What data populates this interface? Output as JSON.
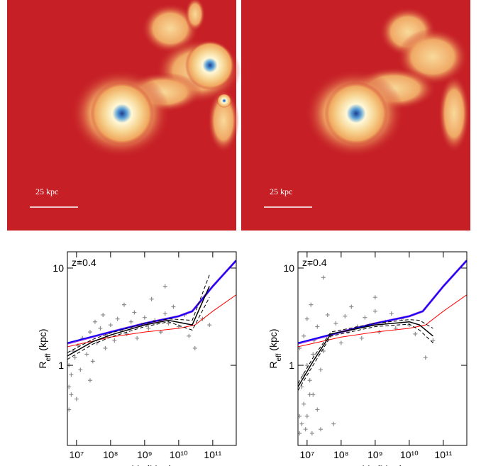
{
  "images": [
    {
      "scale_label": "25 kpc"
    },
    {
      "scale_label": "25 kpc"
    }
  ],
  "chart_data": [
    {
      "type": "scatter",
      "xlog": true,
      "ylog": true,
      "annotation": "z=0.4",
      "xlabel": [
        "M",
        "s",
        " (M",
        "sun",
        ")"
      ],
      "ylabel": [
        "R",
        "eff",
        " (kpc)"
      ],
      "xlim": [
        5400000.0,
        490000000000.0
      ],
      "ylim": [
        0.15,
        14.7
      ],
      "xticks": [
        {
          "value": 10000000.0,
          "label": "10⁷"
        },
        {
          "value": 100000000.0,
          "label": "10⁸"
        },
        {
          "value": 1000000000.0,
          "label": "10⁹"
        },
        {
          "value": 10000000000.0,
          "label": "10¹⁰"
        },
        {
          "value": 100000000000.0,
          "label": "10¹¹"
        }
      ],
      "yticks": [
        1,
        10
      ],
      "series": [
        {
          "color": "#8c8c8c",
          "marker": "+",
          "x": [
            6000000.0,
            7000000.0,
            8000000.0,
            6000000.0,
            9000000.0,
            11000000.0,
            13000000.0,
            15000000.0,
            20000000.0,
            25000000.0,
            30000000.0,
            35000000.0,
            40000000.0,
            50000000.0,
            60000000.0,
            70000000.0,
            80000000.0,
            100000000.0,
            130000000.0,
            160000000.0,
            200000000.0,
            250000000.0,
            300000000.0,
            400000000.0,
            500000000.0,
            600000000.0,
            800000000.0,
            1000000000.0,
            1300000000.0,
            1600000000.0,
            2000000000.0,
            3000000000.0,
            4000000000.0,
            5000000000.0,
            7000000000.0,
            10000000000.0,
            15000000000.0,
            20000000000.0,
            30000000000.0,
            50000000000.0,
            80000000000.0,
            12000000.0,
            6000000.0,
            7000000.0,
            4000000000.0,
            25000000.0,
            10000000.0
          ],
          "values": [
            1.0,
            0.8,
            1.4,
            0.6,
            1.2,
            1.6,
            0.9,
            1.9,
            1.3,
            2.2,
            1.1,
            2.8,
            1.7,
            2.4,
            3.3,
            1.5,
            2.0,
            2.6,
            1.8,
            3.0,
            2.3,
            4.2,
            2.1,
            2.8,
            3.5,
            1.9,
            2.6,
            3.1,
            2.4,
            4.8,
            2.9,
            2.2,
            3.4,
            2.7,
            4.0,
            2.5,
            3.3,
            2.0,
            1.5,
            3.0,
            2.6,
            11.5,
            0.35,
            0.5,
            6.5,
            0.7,
            0.45
          ]
        },
        {
          "color": "#8a2be2",
          "style": "solid",
          "width": 3,
          "x": [
            5400000.0,
            100000000.0,
            1000000000.0,
            10000000000.0,
            25000000000.0,
            100000000000.0,
            490000000000.0
          ],
          "values": [
            1.68,
            2.2,
            2.7,
            3.2,
            3.6,
            6.5,
            12
          ]
        },
        {
          "color": "#0000ff",
          "style": "solid",
          "width": 1.5,
          "x": [
            5400000.0,
            100000000.0,
            1000000000.0,
            10000000000.0,
            25000000000.0,
            100000000000.0,
            490000000000.0
          ],
          "values": [
            1.7,
            2.2,
            2.7,
            3.2,
            3.6,
            6.5,
            12
          ]
        },
        {
          "color": "#ff0000",
          "style": "solid",
          "width": 1,
          "x": [
            5400000.0,
            100000000.0,
            1000000000.0,
            10000000000.0,
            30000000000.0,
            100000000000.0,
            490000000000.0
          ],
          "values": [
            1.55,
            1.95,
            2.2,
            2.4,
            2.6,
            3.6,
            5.3
          ]
        },
        {
          "color": "#000000",
          "style": "solid",
          "width": 1.5,
          "x": [
            5400000.0,
            30000000.0,
            100000000.0,
            1000000000.0,
            5000000000.0,
            25000000000.0,
            80000000000.0
          ],
          "values": [
            1.25,
            1.75,
            2.05,
            2.6,
            2.9,
            2.6,
            6.5
          ]
        },
        {
          "color": "#000000",
          "style": "dashed",
          "width": 1,
          "x": [
            5400000.0,
            30000000.0,
            100000000.0,
            1000000000.0,
            5000000000.0,
            25000000000.0,
            80000000000.0
          ],
          "values": [
            1.35,
            1.85,
            2.15,
            2.7,
            3.0,
            2.9,
            8.5
          ]
        },
        {
          "color": "#000000",
          "style": "dashed",
          "width": 1,
          "x": [
            5400000.0,
            30000000.0,
            100000000.0,
            1000000000.0,
            5000000000.0,
            25000000000.0,
            80000000000.0
          ],
          "values": [
            1.15,
            1.65,
            1.95,
            2.5,
            2.8,
            2.3,
            5.0
          ]
        }
      ]
    },
    {
      "type": "scatter",
      "xlog": true,
      "ylog": true,
      "annotation": "z=0.4",
      "xlabel": [
        "M",
        "s",
        " (M",
        "sun",
        ")"
      ],
      "ylabel": [
        "R",
        "eff",
        " (kpc)"
      ],
      "xlim": [
        5400000.0,
        490000000000.0
      ],
      "ylim": [
        0.15,
        14.7
      ],
      "xticks": [
        {
          "value": 10000000.0,
          "label": "10⁷"
        },
        {
          "value": 100000000.0,
          "label": "10⁸"
        },
        {
          "value": 1000000000.0,
          "label": "10⁹"
        },
        {
          "value": 10000000000.0,
          "label": "10¹⁰"
        },
        {
          "value": 100000000000.0,
          "label": "10¹¹"
        }
      ],
      "yticks": [
        1,
        10
      ],
      "series": [
        {
          "color": "#8c8c8c",
          "marker": "+",
          "x": [
            6000000.0,
            6000000.0,
            7000000.0,
            8000000.0,
            9000000.0,
            10000000.0,
            12000000.0,
            14000000.0,
            7000000.0,
            8000000.0,
            10000000.0,
            12000000.0,
            15000000.0,
            6000000.0,
            8000000.0,
            10000000.0,
            13000000.0,
            16000000.0,
            20000000.0,
            25000000.0,
            20000000.0,
            30000000.0,
            40000000.0,
            50000000.0,
            60000000.0,
            70000000.0,
            100000000.0,
            130000000.0,
            160000000.0,
            200000000.0,
            300000000.0,
            400000000.0,
            500000000.0,
            700000000.0,
            1000000000.0,
            1300000000.0,
            2000000000.0,
            3000000000.0,
            4000000000.0,
            6000000000.0,
            10000000000.0,
            15000000000.0,
            30000000000.0,
            50000000000.0,
            12000000.0,
            30000000.0,
            1000000000.0,
            15000000.0,
            25000000.0
          ],
          "values": [
            0.3,
            0.2,
            0.25,
            0.4,
            0.22,
            0.3,
            0.5,
            0.2,
            0.6,
            0.8,
            1.0,
            0.7,
            1.3,
            1.5,
            2.0,
            3.0,
            4.2,
            1.8,
            0.35,
            0.9,
            2.5,
            1.4,
            3.3,
            2.0,
            0.25,
            2.7,
            1.7,
            3.2,
            2.2,
            4.0,
            2.5,
            1.9,
            3.1,
            2.6,
            3.6,
            2.2,
            2.8,
            3.4,
            2.4,
            3.0,
            2.6,
            2.1,
            1.2,
            1.8,
            11,
            8,
            5,
            0.5,
            0.22
          ]
        },
        {
          "color": "#8a2be2",
          "style": "solid",
          "width": 3,
          "x": [
            5400000.0,
            100000000.0,
            1000000000.0,
            10000000000.0,
            25000000000.0,
            100000000000.0,
            490000000000.0
          ],
          "values": [
            1.68,
            2.2,
            2.7,
            3.2,
            3.6,
            6.5,
            12
          ]
        },
        {
          "color": "#0000ff",
          "style": "solid",
          "width": 1.5,
          "x": [
            5400000.0,
            100000000.0,
            1000000000.0,
            10000000000.0,
            25000000000.0,
            100000000000.0,
            490000000000.0
          ],
          "values": [
            1.7,
            2.2,
            2.7,
            3.2,
            3.6,
            6.5,
            12
          ]
        },
        {
          "color": "#ff0000",
          "style": "solid",
          "width": 1,
          "x": [
            5400000.0,
            100000000.0,
            1000000000.0,
            10000000000.0,
            30000000000.0,
            100000000000.0,
            490000000000.0
          ],
          "values": [
            1.55,
            1.95,
            2.2,
            2.4,
            2.6,
            3.6,
            5.3
          ]
        },
        {
          "color": "#000000",
          "style": "solid",
          "width": 1.5,
          "x": [
            5400000.0,
            15000000.0,
            50000000.0,
            1000000000.0,
            10000000000.0,
            20000000000.0,
            50000000000.0
          ],
          "values": [
            0.6,
            1.1,
            2.1,
            2.6,
            2.8,
            2.6,
            2.0
          ]
        },
        {
          "color": "#000000",
          "style": "dashed",
          "width": 1,
          "x": [
            5400000.0,
            15000000.0,
            50000000.0,
            1000000000.0,
            10000000000.0,
            20000000000.0,
            50000000000.0
          ],
          "values": [
            0.65,
            1.2,
            2.2,
            2.7,
            2.95,
            2.9,
            2.4
          ]
        },
        {
          "color": "#000000",
          "style": "dashed",
          "width": 1,
          "x": [
            5400000.0,
            15000000.0,
            50000000.0,
            1000000000.0,
            10000000000.0,
            20000000000.0,
            50000000000.0
          ],
          "values": [
            0.55,
            1.0,
            2.0,
            2.5,
            2.65,
            2.3,
            1.7
          ]
        }
      ]
    }
  ]
}
